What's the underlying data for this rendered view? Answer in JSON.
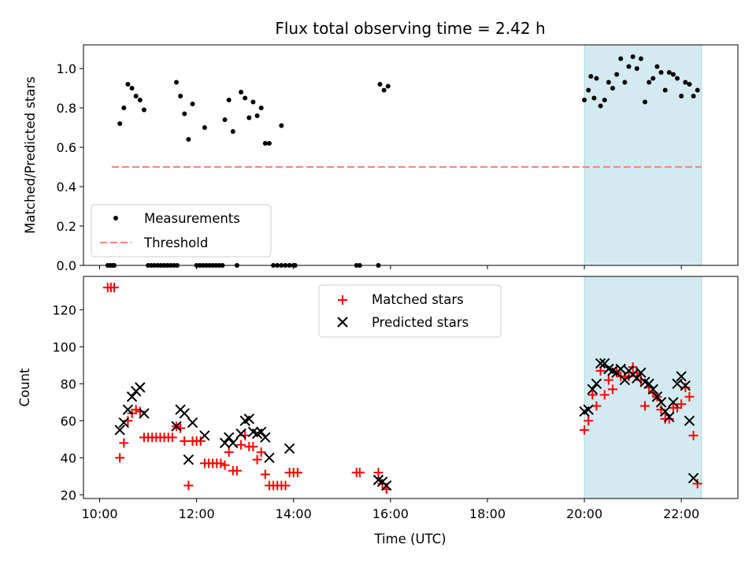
{
  "title": "Flux total observing time = 2.42 h",
  "xlabel": "Time (UTC)",
  "x_ticks": [
    "10:00",
    "12:00",
    "14:00",
    "16:00",
    "18:00",
    "20:00",
    "22:00"
  ],
  "colors": {
    "measurements": "#000000",
    "threshold": "#ff7f7f",
    "matched": "#ff0000",
    "predicted": "#000000",
    "highlight": "#d4eaf1"
  },
  "chart_data": [
    {
      "type": "scatter",
      "ylabel": "Matched/Predicted stars",
      "xlim": [
        "09:40",
        "23:10"
      ],
      "ylim": [
        0,
        1.12
      ],
      "y_ticks": [
        "0.0",
        "0.2",
        "0.4",
        "0.6",
        "0.8",
        "1.0"
      ],
      "highlight_span": [
        "20:00",
        "22:25"
      ],
      "legend": {
        "location": "lower-left",
        "entries": [
          "Measurements",
          "Threshold"
        ]
      },
      "series": [
        {
          "name": "Measurements",
          "marker": "dot",
          "points": [
            [
              "10:10",
              0
            ],
            [
              "10:13",
              0
            ],
            [
              "10:16",
              0
            ],
            [
              "10:18",
              0
            ],
            [
              "10:25",
              0.72
            ],
            [
              "10:30",
              0.8
            ],
            [
              "10:35",
              0.92
            ],
            [
              "10:40",
              0.9
            ],
            [
              "10:45",
              0.86
            ],
            [
              "10:50",
              0.84
            ],
            [
              "10:55",
              0.79
            ],
            [
              "11:00",
              0
            ],
            [
              "11:04",
              0
            ],
            [
              "11:08",
              0
            ],
            [
              "11:12",
              0
            ],
            [
              "11:16",
              0
            ],
            [
              "11:20",
              0
            ],
            [
              "11:24",
              0
            ],
            [
              "11:28",
              0
            ],
            [
              "11:32",
              0
            ],
            [
              "11:36",
              0
            ],
            [
              "11:35",
              0.93
            ],
            [
              "11:40",
              0.86
            ],
            [
              "11:45",
              0.77
            ],
            [
              "11:50",
              0.64
            ],
            [
              "11:55",
              0.82
            ],
            [
              "12:00",
              0
            ],
            [
              "12:04",
              0
            ],
            [
              "12:08",
              0
            ],
            [
              "12:12",
              0
            ],
            [
              "12:16",
              0
            ],
            [
              "12:20",
              0
            ],
            [
              "12:24",
              0
            ],
            [
              "12:28",
              0
            ],
            [
              "12:32",
              0
            ],
            [
              "12:50",
              0
            ],
            [
              "12:10",
              0.7
            ],
            [
              "12:35",
              0.74
            ],
            [
              "12:40",
              0.84
            ],
            [
              "12:45",
              0.68
            ],
            [
              "12:55",
              0.88
            ],
            [
              "13:00",
              0.85
            ],
            [
              "13:05",
              0.75
            ],
            [
              "13:10",
              0.83
            ],
            [
              "13:15",
              0.76
            ],
            [
              "13:20",
              0.8
            ],
            [
              "13:25",
              0.62
            ],
            [
              "13:30",
              0.62
            ],
            [
              "13:45",
              0.71
            ],
            [
              "13:35",
              0
            ],
            [
              "13:40",
              0
            ],
            [
              "13:45",
              0
            ],
            [
              "13:50",
              0
            ],
            [
              "13:55",
              0
            ],
            [
              "14:00",
              0
            ],
            [
              "14:02",
              0
            ],
            [
              "15:18",
              0
            ],
            [
              "15:22",
              0
            ],
            [
              "15:45",
              0
            ],
            [
              "15:47",
              0.92
            ],
            [
              "15:52",
              0.89
            ],
            [
              "15:57",
              0.91
            ],
            [
              "20:00",
              0.84
            ],
            [
              "20:05",
              0.89
            ],
            [
              "20:08",
              0.96
            ],
            [
              "20:12",
              0.85
            ],
            [
              "20:15",
              0.95
            ],
            [
              "20:20",
              0.81
            ],
            [
              "20:25",
              0.84
            ],
            [
              "20:30",
              0.93
            ],
            [
              "20:35",
              0.9
            ],
            [
              "20:40",
              0.97
            ],
            [
              "20:45",
              1.05
            ],
            [
              "20:50",
              0.93
            ],
            [
              "20:55",
              1.01
            ],
            [
              "21:00",
              1.06
            ],
            [
              "21:05",
              1.0
            ],
            [
              "21:10",
              1.05
            ],
            [
              "21:15",
              0.83
            ],
            [
              "21:20",
              0.93
            ],
            [
              "21:25",
              0.95
            ],
            [
              "21:30",
              1.01
            ],
            [
              "21:35",
              0.98
            ],
            [
              "21:40",
              0.89
            ],
            [
              "21:45",
              0.98
            ],
            [
              "21:50",
              0.97
            ],
            [
              "21:55",
              0.95
            ],
            [
              "22:00",
              0.86
            ],
            [
              "22:05",
              0.93
            ],
            [
              "22:10",
              0.92
            ],
            [
              "22:15",
              0.86
            ],
            [
              "22:20",
              0.89
            ]
          ]
        },
        {
          "name": "Threshold",
          "line": "dashed",
          "points": [
            [
              "10:15",
              0.5
            ],
            [
              "22:25",
              0.5
            ]
          ]
        }
      ]
    },
    {
      "type": "scatter",
      "ylabel": "Count",
      "xlim": [
        "09:40",
        "23:10"
      ],
      "ylim": [
        18,
        138
      ],
      "y_ticks": [
        "20",
        "40",
        "60",
        "80",
        "100",
        "120"
      ],
      "highlight_span": [
        "20:00",
        "22:25"
      ],
      "legend": {
        "location": "upper-center",
        "entries": [
          "Matched stars",
          "Predicted stars"
        ]
      },
      "series": [
        {
          "name": "Matched stars",
          "marker": "plus",
          "points": [
            [
              "10:10",
              132
            ],
            [
              "10:14",
              132
            ],
            [
              "10:18",
              132
            ],
            [
              "10:25",
              40
            ],
            [
              "10:30",
              48
            ],
            [
              "10:35",
              60
            ],
            [
              "10:40",
              64
            ],
            [
              "10:45",
              66
            ],
            [
              "10:50",
              65
            ],
            [
              "10:55",
              51
            ],
            [
              "11:00",
              51
            ],
            [
              "11:05",
              51
            ],
            [
              "11:10",
              51
            ],
            [
              "11:15",
              51
            ],
            [
              "11:20",
              51
            ],
            [
              "11:25",
              51
            ],
            [
              "11:30",
              51
            ],
            [
              "11:35",
              57
            ],
            [
              "11:40",
              56
            ],
            [
              "11:45",
              49
            ],
            [
              "11:50",
              25
            ],
            [
              "11:55",
              49
            ],
            [
              "12:00",
              49
            ],
            [
              "12:05",
              49
            ],
            [
              "12:10",
              37
            ],
            [
              "12:15",
              37
            ],
            [
              "12:20",
              37
            ],
            [
              "12:25",
              37
            ],
            [
              "12:30",
              37
            ],
            [
              "12:35",
              36
            ],
            [
              "12:40",
              43
            ],
            [
              "12:45",
              33
            ],
            [
              "12:50",
              33
            ],
            [
              "12:55",
              47
            ],
            [
              "13:00",
              52
            ],
            [
              "13:05",
              46
            ],
            [
              "13:10",
              46
            ],
            [
              "13:15",
              39
            ],
            [
              "13:20",
              43
            ],
            [
              "13:25",
              31
            ],
            [
              "13:30",
              25
            ],
            [
              "13:35",
              25
            ],
            [
              "13:40",
              25
            ],
            [
              "13:45",
              25
            ],
            [
              "13:50",
              25
            ],
            [
              "13:55",
              32
            ],
            [
              "14:00",
              32
            ],
            [
              "14:05",
              32
            ],
            [
              "15:18",
              32
            ],
            [
              "15:22",
              32
            ],
            [
              "15:45",
              32
            ],
            [
              "15:50",
              26
            ],
            [
              "15:55",
              23
            ],
            [
              "20:00",
              55
            ],
            [
              "20:05",
              60
            ],
            [
              "20:10",
              74
            ],
            [
              "20:15",
              68
            ],
            [
              "20:20",
              87
            ],
            [
              "20:25",
              74
            ],
            [
              "20:30",
              82
            ],
            [
              "20:35",
              77
            ],
            [
              "20:40",
              86
            ],
            [
              "20:45",
              84
            ],
            [
              "20:50",
              84
            ],
            [
              "20:55",
              84
            ],
            [
              "21:00",
              89
            ],
            [
              "21:05",
              86
            ],
            [
              "21:10",
              82
            ],
            [
              "21:15",
              68
            ],
            [
              "21:20",
              78
            ],
            [
              "21:25",
              75
            ],
            [
              "21:30",
              73
            ],
            [
              "21:35",
              66
            ],
            [
              "21:40",
              61
            ],
            [
              "21:45",
              61
            ],
            [
              "21:50",
              67
            ],
            [
              "21:55",
              67
            ],
            [
              "22:00",
              69
            ],
            [
              "22:05",
              78
            ],
            [
              "22:10",
              73
            ],
            [
              "22:15",
              52
            ],
            [
              "22:20",
              26
            ]
          ]
        },
        {
          "name": "Predicted stars",
          "marker": "x",
          "points": [
            [
              "10:25",
              55
            ],
            [
              "10:30",
              59
            ],
            [
              "10:35",
              66
            ],
            [
              "10:40",
              73
            ],
            [
              "10:45",
              76
            ],
            [
              "10:50",
              78
            ],
            [
              "10:55",
              64
            ],
            [
              "11:35",
              57
            ],
            [
              "11:40",
              66
            ],
            [
              "11:45",
              64
            ],
            [
              "11:50",
              39
            ],
            [
              "11:55",
              59
            ],
            [
              "12:10",
              52
            ],
            [
              "12:35",
              48
            ],
            [
              "12:40",
              51
            ],
            [
              "12:45",
              48
            ],
            [
              "12:55",
              53
            ],
            [
              "13:00",
              60
            ],
            [
              "13:05",
              61
            ],
            [
              "13:10",
              54
            ],
            [
              "13:15",
              53
            ],
            [
              "13:20",
              54
            ],
            [
              "13:25",
              51
            ],
            [
              "13:30",
              40
            ],
            [
              "13:55",
              45
            ],
            [
              "15:45",
              28
            ],
            [
              "15:50",
              27
            ],
            [
              "15:55",
              25
            ],
            [
              "20:00",
              65
            ],
            [
              "20:05",
              66
            ],
            [
              "20:10",
              77
            ],
            [
              "20:15",
              80
            ],
            [
              "20:20",
              91
            ],
            [
              "20:25",
              91
            ],
            [
              "20:30",
              88
            ],
            [
              "20:35",
              87
            ],
            [
              "20:40",
              86
            ],
            [
              "20:45",
              88
            ],
            [
              "20:50",
              82
            ],
            [
              "20:55",
              87
            ],
            [
              "21:00",
              85
            ],
            [
              "21:05",
              83
            ],
            [
              "21:10",
              86
            ],
            [
              "21:15",
              81
            ],
            [
              "21:20",
              80
            ],
            [
              "21:25",
              77
            ],
            [
              "21:30",
              73
            ],
            [
              "21:35",
              70
            ],
            [
              "21:40",
              65
            ],
            [
              "21:45",
              62
            ],
            [
              "21:50",
              70
            ],
            [
              "21:55",
              80
            ],
            [
              "22:00",
              84
            ],
            [
              "22:05",
              79
            ],
            [
              "22:10",
              60
            ],
            [
              "22:15",
              29
            ]
          ]
        }
      ]
    }
  ]
}
